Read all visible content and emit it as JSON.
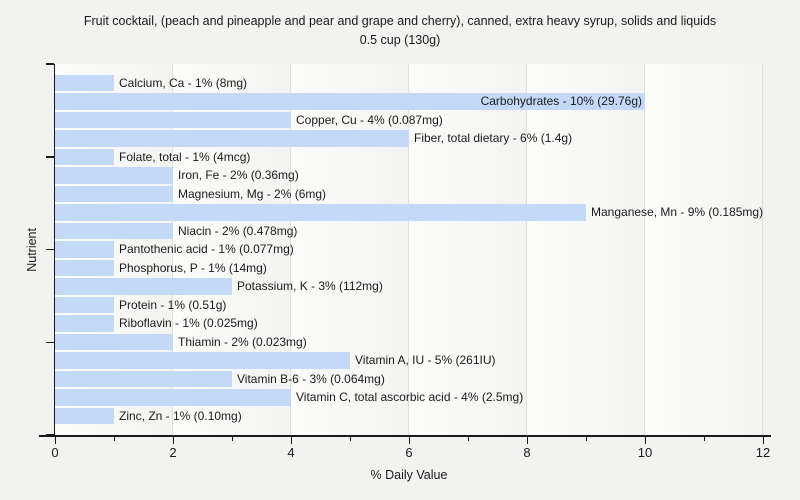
{
  "chart_data": {
    "type": "bar",
    "orientation": "horizontal",
    "title": "Fruit cocktail, (peach and pineapple and pear and grape and cherry), canned, extra heavy syrup, solids and liquids",
    "subtitle": "0.5 cup (130g)",
    "xlabel": "% Daily Value",
    "ylabel": "Nutrient",
    "xlim": [
      0,
      12
    ],
    "x_major_ticks": [
      0,
      2,
      4,
      6,
      8,
      10,
      12
    ],
    "x_minor_ticks": [
      1,
      3,
      5,
      7,
      9,
      11
    ],
    "grid": "vertical major gridlines",
    "legend": "none",
    "bar_color": "#c3d9f7",
    "axis_color": "#1a1a1a",
    "gridline_color": "#e0dfdd",
    "background_color": "#f2f2f0",
    "bars": [
      {
        "name": "Calcium, Ca",
        "percent": 1,
        "amount": "8mg"
      },
      {
        "name": "Carbohydrates",
        "percent": 10,
        "amount": "29.76g",
        "label_inside": true
      },
      {
        "name": "Copper, Cu",
        "percent": 4,
        "amount": "0.087mg"
      },
      {
        "name": "Fiber, total dietary",
        "percent": 6,
        "amount": "1.4g"
      },
      {
        "name": "Folate, total",
        "percent": 1,
        "amount": "4mcg"
      },
      {
        "name": "Iron, Fe",
        "percent": 2,
        "amount": "0.36mg"
      },
      {
        "name": "Magnesium, Mg",
        "percent": 2,
        "amount": "6mg"
      },
      {
        "name": "Manganese, Mn",
        "percent": 9,
        "amount": "0.185mg"
      },
      {
        "name": "Niacin",
        "percent": 2,
        "amount": "0.478mg"
      },
      {
        "name": "Pantothenic acid",
        "percent": 1,
        "amount": "0.077mg"
      },
      {
        "name": "Phosphorus, P",
        "percent": 1,
        "amount": "14mg"
      },
      {
        "name": "Potassium, K",
        "percent": 3,
        "amount": "112mg"
      },
      {
        "name": "Protein",
        "percent": 1,
        "amount": "0.51g"
      },
      {
        "name": "Riboflavin",
        "percent": 1,
        "amount": "0.025mg"
      },
      {
        "name": "Thiamin",
        "percent": 2,
        "amount": "0.023mg"
      },
      {
        "name": "Vitamin A, IU",
        "percent": 5,
        "amount": "261IU"
      },
      {
        "name": "Vitamin B-6",
        "percent": 3,
        "amount": "0.064mg"
      },
      {
        "name": "Vitamin C, total ascorbic acid",
        "percent": 4,
        "amount": "2.5mg"
      },
      {
        "name": "Zinc, Zn",
        "percent": 1,
        "amount": "0.10mg"
      }
    ]
  }
}
